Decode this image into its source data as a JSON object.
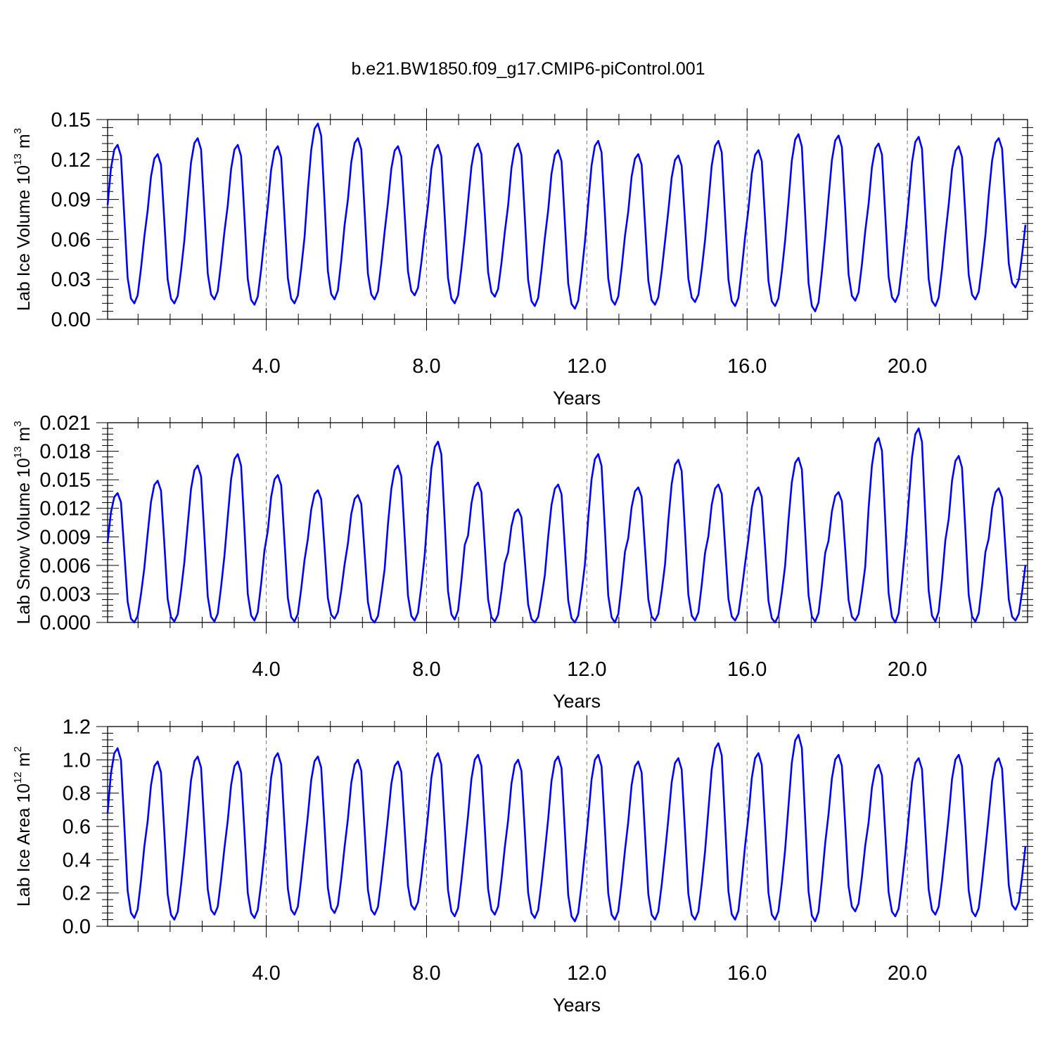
{
  "title": "b.e21.BW1850.f09_g17.CMIP6-piControl.001",
  "series_color": "#0000ff",
  "chart_data": [
    {
      "type": "line",
      "xlabel": "Years",
      "ylabel": "Lab Ice Volume 10",
      "ylabel_exp": "13",
      "ylabel_unit": " m",
      "ylabel_unit_exp": "3",
      "xlim": [
        0.04,
        23.0
      ],
      "ylim": [
        0.0,
        0.15
      ],
      "xticks": [
        "4.0",
        "8.0",
        "12.0",
        "16.0",
        "20.0"
      ],
      "xtick_values": [
        4,
        8,
        12,
        16,
        20
      ],
      "yticks": [
        "0.00",
        "0.03",
        "0.06",
        "0.09",
        "0.12",
        "0.15"
      ],
      "ytick_values": [
        0.0,
        0.03,
        0.06,
        0.09,
        0.12,
        0.15
      ],
      "grid": "vertical dashed at labeled x ticks",
      "x_start": 0.04,
      "x_step": 0.0833,
      "yearly_max": [
        0.131,
        0.124,
        0.136,
        0.131,
        0.13,
        0.147,
        0.136,
        0.13,
        0.131,
        0.132,
        0.132,
        0.127,
        0.134,
        0.124,
        0.123,
        0.134,
        0.127,
        0.139,
        0.138,
        0.132,
        0.137,
        0.13,
        0.136
      ],
      "yearly_min": [
        0.012,
        0.012,
        0.015,
        0.011,
        0.012,
        0.015,
        0.015,
        0.018,
        0.012,
        0.017,
        0.01,
        0.008,
        0.011,
        0.011,
        0.013,
        0.01,
        0.01,
        0.006,
        0.014,
        0.013,
        0.01,
        0.015,
        0.024
      ]
    },
    {
      "type": "line",
      "xlabel": "Years",
      "ylabel": "Lab Snow Volume 10",
      "ylabel_exp": "13",
      "ylabel_unit": " m",
      "ylabel_unit_exp": "3",
      "xlim": [
        0.04,
        23.0
      ],
      "ylim": [
        0.0,
        0.021
      ],
      "xticks": [
        "4.0",
        "8.0",
        "12.0",
        "16.0",
        "20.0"
      ],
      "xtick_values": [
        4,
        8,
        12,
        16,
        20
      ],
      "yticks": [
        "0.000",
        "0.003",
        "0.006",
        "0.009",
        "0.012",
        "0.015",
        "0.018",
        "0.021"
      ],
      "ytick_values": [
        0.0,
        0.003,
        0.006,
        0.009,
        0.012,
        0.015,
        0.018,
        0.021
      ],
      "grid": "vertical dashed at labeled x ticks",
      "x_start": 0.04,
      "x_step": 0.0833,
      "yearly_max": [
        0.0136,
        0.0149,
        0.0165,
        0.0177,
        0.0155,
        0.0139,
        0.0134,
        0.0165,
        0.019,
        0.0147,
        0.0119,
        0.0145,
        0.0177,
        0.0142,
        0.0171,
        0.0145,
        0.0142,
        0.0173,
        0.0137,
        0.0194,
        0.0204,
        0.0175,
        0.0141
      ],
      "yearly_min": [
        0.0,
        0.0001,
        0.0001,
        0.0002,
        0.0001,
        0.0004,
        0.0,
        0.0002,
        0.0003,
        0.0001,
        0.0,
        0.0,
        0.0,
        0.0002,
        0.0002,
        0.0002,
        0.0,
        0.0001,
        0.0002,
        0.0,
        0.0001,
        0.0001,
        0.0002
      ]
    },
    {
      "type": "line",
      "xlabel": "Years",
      "ylabel": "Lab Ice Area 10",
      "ylabel_exp": "12",
      "ylabel_unit": " m",
      "ylabel_unit_exp": "2",
      "xlim": [
        0.04,
        23.0
      ],
      "ylim": [
        0.0,
        1.2
      ],
      "xticks": [
        "4.0",
        "8.0",
        "12.0",
        "16.0",
        "20.0"
      ],
      "xtick_values": [
        4,
        8,
        12,
        16,
        20
      ],
      "yticks": [
        "0.0",
        "0.2",
        "0.4",
        "0.6",
        "0.8",
        "1.0",
        "1.2"
      ],
      "ytick_values": [
        0.0,
        0.2,
        0.4,
        0.6,
        0.8,
        1.0,
        1.2
      ],
      "grid": "vertical dashed at labeled x ticks",
      "x_start": 0.04,
      "x_step": 0.0833,
      "yearly_max": [
        1.07,
        0.99,
        1.02,
        0.99,
        1.04,
        1.02,
        1.0,
        0.99,
        1.04,
        1.03,
        1.0,
        1.02,
        1.03,
        0.99,
        1.01,
        1.1,
        1.04,
        1.15,
        1.03,
        0.97,
        1.01,
        1.03,
        1.01
      ],
      "yearly_min": [
        0.05,
        0.04,
        0.07,
        0.05,
        0.07,
        0.08,
        0.07,
        0.1,
        0.06,
        0.07,
        0.05,
        0.03,
        0.04,
        0.04,
        0.04,
        0.04,
        0.04,
        0.03,
        0.09,
        0.06,
        0.07,
        0.06,
        0.1
      ]
    }
  ]
}
